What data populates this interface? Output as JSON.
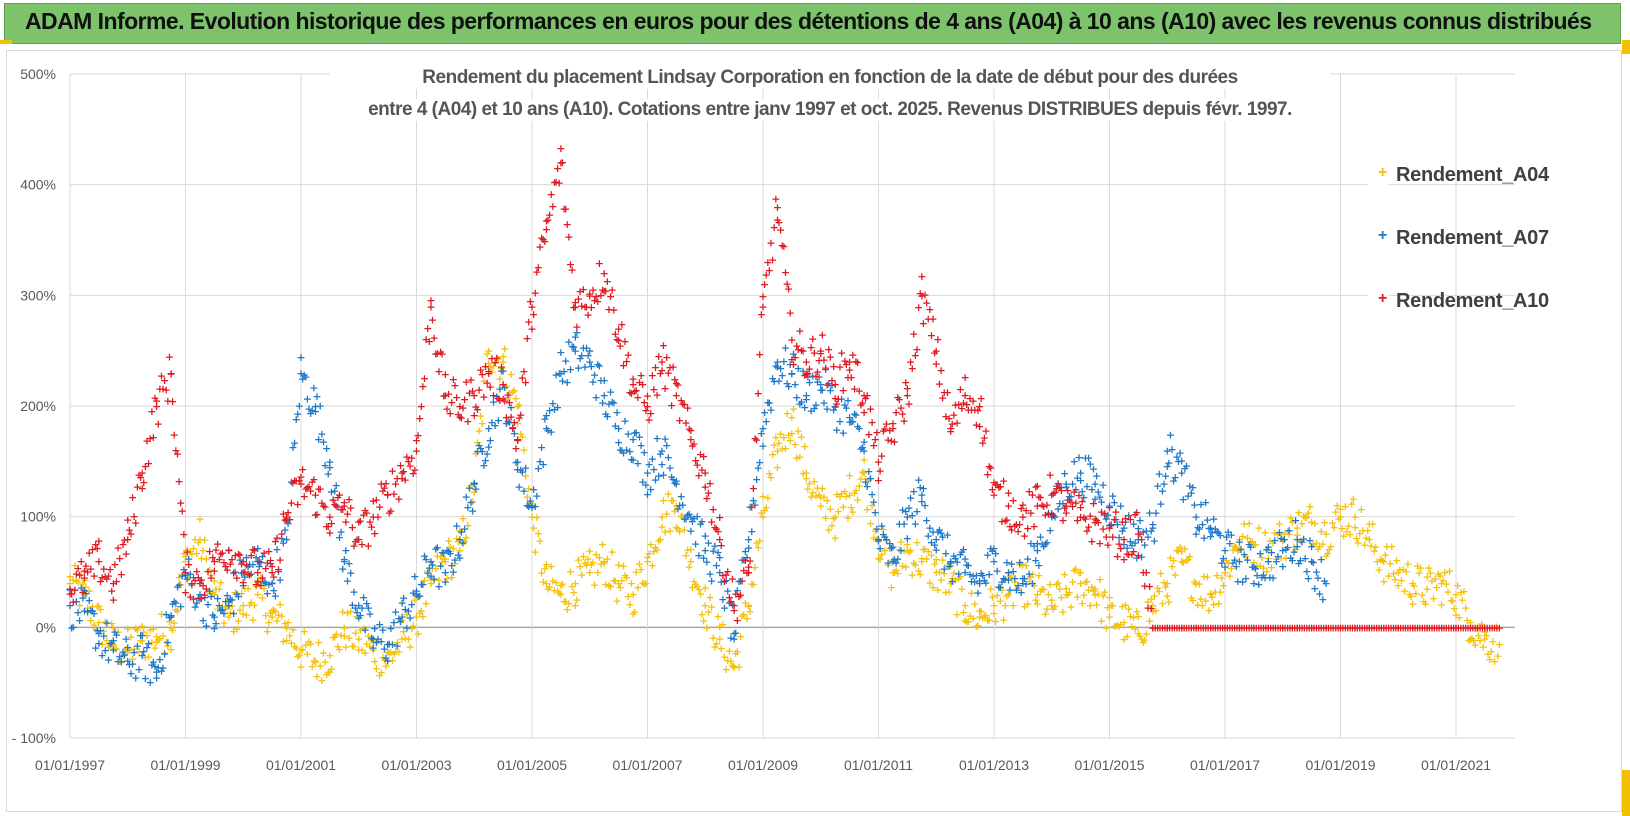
{
  "header": {
    "title": "ADAM Informe. Evolution historique des performances en euros pour des détentions de 4 ans (A04) à 10 ans (A10) avec les revenus connus distribués"
  },
  "colors": {
    "banner": "#7dc36b",
    "a04": "#f4c20d",
    "a07": "#1f78c8",
    "a10": "#e01a22"
  },
  "chart_data": {
    "type": "scatter",
    "subtitle_line1": "Rendement du placement Lindsay Corporation en fonction de la date de début pour des durées",
    "subtitle_line2": "entre 4 (A04) et 10 ans (A10). Cotations entre janv 1997 et oct. 2025. Revenus DISTRIBUES depuis févr. 1997.",
    "xlabel": "",
    "ylabel": "",
    "x_range": [
      "1997-01-01",
      "2021-10-01"
    ],
    "ylim": [
      -100,
      500
    ],
    "y_tick_labels": [
      "- 100%",
      "0%",
      "100%",
      "200%",
      "300%",
      "400%",
      "500%"
    ],
    "y_ticks": [
      -100,
      0,
      100,
      200,
      300,
      400,
      500
    ],
    "x_tick_labels": [
      "01/01/1997",
      "01/01/1999",
      "01/01/2001",
      "01/01/2003",
      "01/01/2005",
      "01/01/2007",
      "01/01/2009",
      "01/01/2011",
      "01/01/2013",
      "01/01/2015",
      "01/01/2017",
      "01/01/2019",
      "01/01/2021"
    ],
    "x_ticks": [
      1997,
      1999,
      2001,
      2003,
      2005,
      2007,
      2009,
      2011,
      2013,
      2015,
      2017,
      2019,
      2021
    ],
    "grid": true,
    "legend_position": "right",
    "series": [
      {
        "name": "Rendement_A04",
        "x": [
          1997.0,
          1997.25,
          1997.5,
          1997.75,
          1998.0,
          1998.25,
          1998.5,
          1998.75,
          1999.0,
          1999.25,
          1999.5,
          1999.75,
          2000.0,
          2000.25,
          2000.5,
          2000.75,
          2001.0,
          2001.25,
          2001.5,
          2001.75,
          2002.0,
          2002.25,
          2002.5,
          2002.75,
          2003.0,
          2003.25,
          2003.5,
          2003.75,
          2004.0,
          2004.25,
          2004.5,
          2004.75,
          2005.0,
          2005.25,
          2005.5,
          2005.75,
          2006.0,
          2006.25,
          2006.5,
          2006.75,
          2007.0,
          2007.25,
          2007.5,
          2007.75,
          2008.0,
          2008.25,
          2008.5,
          2008.75,
          2009.0,
          2009.25,
          2009.5,
          2009.75,
          2010.0,
          2010.25,
          2010.5,
          2010.75,
          2011.0,
          2011.25,
          2011.5,
          2011.75,
          2012.0,
          2012.25,
          2012.5,
          2012.75,
          2013.0,
          2013.25,
          2013.5,
          2013.75,
          2014.0,
          2014.25,
          2014.5,
          2014.75,
          2015.0,
          2015.25,
          2015.5,
          2015.75,
          2016.0,
          2016.25,
          2016.5,
          2016.75,
          2017.0,
          2017.25,
          2017.5,
          2017.75,
          2018.0,
          2018.25,
          2018.5,
          2018.75,
          2019.0,
          2019.25,
          2019.5,
          2019.75,
          2020.0,
          2020.25,
          2020.5,
          2020.75,
          2021.0,
          2021.25,
          2021.5,
          2021.75
        ],
        "values": [
          40,
          30,
          5,
          -15,
          -20,
          -12,
          -8,
          0,
          60,
          80,
          30,
          10,
          20,
          30,
          10,
          0,
          -20,
          -30,
          -25,
          0,
          -10,
          -20,
          -30,
          -10,
          10,
          40,
          60,
          70,
          130,
          250,
          240,
          200,
          100,
          40,
          30,
          40,
          50,
          60,
          40,
          30,
          60,
          100,
          110,
          60,
          20,
          -10,
          -35,
          20,
          100,
          160,
          190,
          140,
          110,
          100,
          120,
          140,
          80,
          50,
          70,
          60,
          50,
          40,
          20,
          10,
          20,
          30,
          40,
          30,
          20,
          30,
          40,
          35,
          10,
          5,
          -5,
          20,
          40,
          60,
          40,
          30,
          50,
          80,
          75,
          70,
          80,
          90,
          95,
          85,
          100,
          100,
          80,
          60,
          50,
          40,
          35,
          40,
          30,
          5,
          -10,
          -15
        ]
      },
      {
        "name": "Rendement_A07",
        "x": [
          1997.0,
          1997.25,
          1997.5,
          1997.75,
          1998.0,
          1998.25,
          1998.5,
          1998.75,
          1999.0,
          1999.25,
          1999.5,
          1999.75,
          2000.0,
          2000.25,
          2000.5,
          2000.75,
          2001.0,
          2001.25,
          2001.5,
          2001.75,
          2002.0,
          2002.25,
          2002.5,
          2002.75,
          2003.0,
          2003.25,
          2003.5,
          2003.75,
          2004.0,
          2004.25,
          2004.5,
          2004.75,
          2005.0,
          2005.25,
          2005.5,
          2005.75,
          2006.0,
          2006.25,
          2006.5,
          2006.75,
          2007.0,
          2007.25,
          2007.5,
          2007.75,
          2008.0,
          2008.25,
          2008.5,
          2008.75,
          2009.0,
          2009.25,
          2009.5,
          2009.75,
          2010.0,
          2010.25,
          2010.5,
          2010.75,
          2011.0,
          2011.25,
          2011.5,
          2011.75,
          2012.0,
          2012.25,
          2012.5,
          2012.75,
          2013.0,
          2013.25,
          2013.5,
          2013.75,
          2014.0,
          2014.25,
          2014.5,
          2014.75,
          2015.0,
          2015.25,
          2015.5,
          2015.75,
          2016.0,
          2016.25,
          2016.5,
          2016.75,
          2017.0,
          2017.25,
          2017.5,
          2017.75,
          2018.0,
          2018.25,
          2018.5,
          2018.75
        ],
        "values": [
          20,
          15,
          -5,
          -20,
          -30,
          -25,
          -40,
          10,
          50,
          30,
          10,
          20,
          50,
          60,
          40,
          80,
          230,
          200,
          150,
          60,
          20,
          -10,
          -15,
          10,
          30,
          60,
          50,
          80,
          130,
          180,
          220,
          150,
          110,
          180,
          230,
          250,
          240,
          210,
          180,
          170,
          140,
          160,
          130,
          100,
          70,
          50,
          -5,
          80,
          180,
          240,
          230,
          210,
          220,
          200,
          190,
          160,
          80,
          60,
          100,
          120,
          80,
          60,
          50,
          40,
          60,
          50,
          40,
          70,
          100,
          130,
          140,
          130,
          110,
          90,
          80,
          90,
          160,
          140,
          100,
          90,
          70,
          60,
          55,
          60,
          70,
          80,
          60,
          40
        ]
      },
      {
        "name": "Rendement_A10",
        "x": [
          1997.0,
          1997.25,
          1997.5,
          1997.75,
          1998.0,
          1998.25,
          1998.5,
          1998.75,
          1999.0,
          1999.25,
          1999.5,
          1999.75,
          2000.0,
          2000.25,
          2000.5,
          2000.75,
          2001.0,
          2001.25,
          2001.5,
          2001.75,
          2002.0,
          2002.25,
          2002.5,
          2002.75,
          2003.0,
          2003.25,
          2003.5,
          2003.75,
          2004.0,
          2004.25,
          2004.5,
          2004.75,
          2005.0,
          2005.25,
          2005.5,
          2005.75,
          2006.0,
          2006.25,
          2006.5,
          2006.75,
          2007.0,
          2007.25,
          2007.5,
          2007.75,
          2008.0,
          2008.25,
          2008.5,
          2008.75,
          2009.0,
          2009.25,
          2009.5,
          2009.75,
          2010.0,
          2010.25,
          2010.5,
          2010.75,
          2011.0,
          2011.25,
          2011.5,
          2011.75,
          2012.0,
          2012.25,
          2012.5,
          2012.75,
          2013.0,
          2013.25,
          2013.5,
          2013.75,
          2014.0,
          2014.25,
          2014.5,
          2014.75,
          2015.0,
          2015.25,
          2015.5,
          2015.75,
          2016.0,
          2016.25,
          2016.5,
          2016.75,
          2017.0,
          2017.25,
          2017.5,
          2017.75,
          2018.0,
          2018.25,
          2018.5,
          2018.75,
          2019.0,
          2019.25,
          2019.5,
          2019.75,
          2020.0,
          2020.25,
          2020.5,
          2020.75,
          2021.0,
          2021.25,
          2021.5,
          2021.75
        ],
        "values": [
          35,
          45,
          60,
          40,
          80,
          140,
          200,
          230,
          50,
          40,
          60,
          70,
          60,
          50,
          50,
          100,
          130,
          120,
          100,
          110,
          80,
          100,
          120,
          140,
          160,
          290,
          210,
          200,
          210,
          230,
          220,
          170,
          290,
          360,
          420,
          290,
          300,
          320,
          270,
          220,
          200,
          240,
          210,
          170,
          140,
          80,
          20,
          50,
          290,
          380,
          260,
          240,
          250,
          220,
          240,
          210,
          150,
          180,
          210,
          300,
          250,
          180,
          210,
          200,
          120,
          110,
          100,
          110,
          120,
          110,
          100,
          95,
          90,
          80,
          85,
          0,
          0,
          0,
          0,
          0,
          0,
          0,
          0,
          0,
          0,
          0,
          0,
          0,
          0,
          0,
          0,
          0,
          0,
          0,
          0,
          0,
          0,
          0,
          0,
          0
        ]
      }
    ]
  }
}
